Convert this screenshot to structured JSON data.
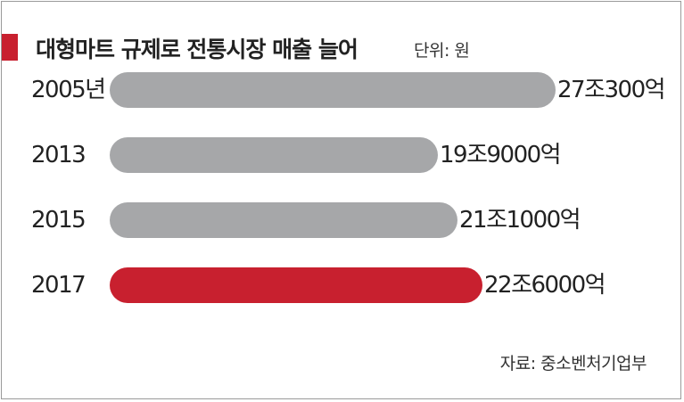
{
  "title": "대형마트 규제로 전통시장 매출 늘어",
  "unit": "단위: 원",
  "source": "자료: 중소벤처기업부",
  "colors": {
    "bar": "#a6a7a9",
    "highlight": "#c8202f",
    "accent": "#c8202f"
  },
  "chart_data": {
    "type": "bar",
    "orientation": "horizontal",
    "categories": [
      "2005년",
      "2013",
      "2015",
      "2017"
    ],
    "values": [
      270300,
      199000,
      211000,
      226000
    ],
    "value_labels": [
      "27조300억",
      "19조9000억",
      "21조1000억",
      "22조6000억"
    ],
    "value_unit": "억 원",
    "highlight_index": 3,
    "xlim": [
      0,
      270300
    ]
  }
}
